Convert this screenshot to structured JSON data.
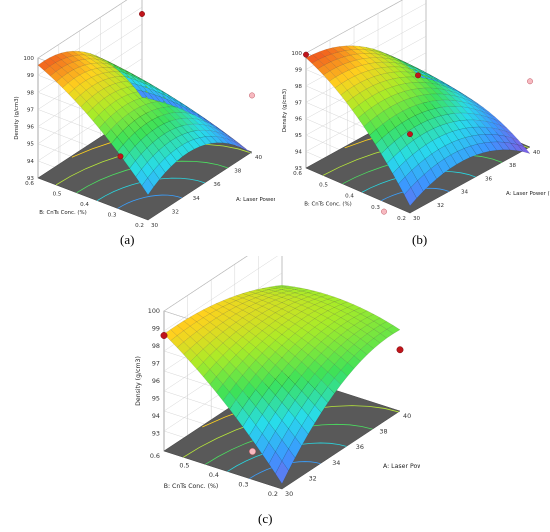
{
  "figure": {
    "panel_labels": [
      "(a)",
      "(b)",
      "(c)"
    ]
  },
  "chart_data": [
    {
      "type": "surface",
      "panel": "(a)",
      "zlabel": "Density (g/cm3)",
      "xlabel": "A: Laser Power (W)",
      "ylabel": "B: CnTs Conc. (%)",
      "x_ticks": [
        "30",
        "32",
        "34",
        "36",
        "38",
        "40"
      ],
      "y_ticks": [
        "0.2",
        "0.3",
        "0.4",
        "0.5",
        "0.6"
      ],
      "z_ticks": [
        "93",
        "94",
        "95",
        "96",
        "97",
        "98",
        "99",
        "100"
      ],
      "xlim": [
        30,
        40
      ],
      "ylim": [
        0.2,
        0.6
      ],
      "zlim": [
        93,
        100
      ],
      "surface_peak": 99.6,
      "surface_min": 92.9,
      "design_points": [
        {
          "x": 40,
          "y": 0.6,
          "z": 98.6,
          "side": "above"
        },
        {
          "x": 30,
          "y": 0.3,
          "z": 96.1,
          "side": "above"
        },
        {
          "x": 40,
          "y": 0.2,
          "z": 96.3,
          "side": "below"
        }
      ],
      "grid": true
    },
    {
      "type": "surface",
      "panel": "(b)",
      "zlabel": "Density (g/cm3)",
      "xlabel": "A: Laser Power (W)",
      "ylabel": "B: CnTs Conc. (%)",
      "x_ticks": [
        "30",
        "32",
        "34",
        "36",
        "38",
        "40"
      ],
      "y_ticks": [
        "0.2",
        "0.3",
        "0.4",
        "0.5",
        "0.6"
      ],
      "z_ticks": [
        "93",
        "94",
        "95",
        "96",
        "97",
        "98",
        "99",
        "100"
      ],
      "xlim": [
        30,
        40
      ],
      "ylim": [
        0.2,
        0.6
      ],
      "zlim": [
        93,
        100
      ],
      "surface_peak": 99.7,
      "surface_min": 92.6,
      "design_points": [
        {
          "x": 30,
          "y": 0.6,
          "z": 99.9,
          "side": "above"
        },
        {
          "x": 35,
          "y": 0.4,
          "z": 98.0,
          "side": "above"
        },
        {
          "x": 30,
          "y": 0.2,
          "z": 97.8,
          "side": "above"
        },
        {
          "x": 40,
          "y": 0.2,
          "z": 97.0,
          "side": "below"
        },
        {
          "x": 30,
          "y": 0.3,
          "z": 92.4,
          "side": "below"
        }
      ],
      "grid": true
    },
    {
      "type": "surface",
      "panel": "(c)",
      "zlabel": "Density (g/cm3)",
      "xlabel": "A: Laser Power (W)",
      "ylabel": "B: CnTs Conc. (%)",
      "x_ticks": [
        "30",
        "32",
        "34",
        "36",
        "38",
        "40"
      ],
      "y_ticks": [
        "0.2",
        "0.3",
        "0.4",
        "0.5",
        "0.6"
      ],
      "z_ticks": [
        "93",
        "94",
        "95",
        "96",
        "97",
        "98",
        "99",
        "100"
      ],
      "xlim": [
        30,
        40
      ],
      "ylim": [
        0.2,
        0.6
      ],
      "zlim": [
        92,
        100
      ],
      "surface_peak": 98.7,
      "surface_min": 92.3,
      "design_points": [
        {
          "x": 30,
          "y": 0.6,
          "z": 98.6,
          "side": "above"
        },
        {
          "x": 40,
          "y": 0.2,
          "z": 95.5,
          "side": "above"
        },
        {
          "x": 30,
          "y": 0.3,
          "z": 93.6,
          "side": "below"
        }
      ],
      "grid": true
    }
  ]
}
